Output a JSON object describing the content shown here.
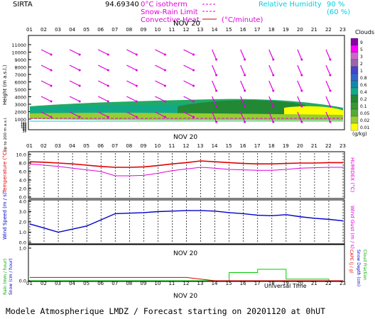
{
  "header": {
    "station": "SIRTA",
    "station_code": "94.69340",
    "legend_isotherm": "0°C isotherm",
    "legend_snow_rain": "Snow-Rain Limit",
    "legend_convective": "Convective Heat.",
    "legend_convective_unit": "(°C/minute)",
    "legend_rh_label": "Relative Humidity",
    "legend_rh_90": "90 %",
    "legend_rh_60": "(60 %)"
  },
  "date_label": "NOV 20",
  "hours": [
    "01",
    "02",
    "03",
    "04",
    "05",
    "06",
    "07",
    "08",
    "09",
    "10",
    "11",
    "12",
    "13",
    "14",
    "15",
    "16",
    "17",
    "18",
    "19",
    "20",
    "21",
    "22",
    "23"
  ],
  "footer": {
    "universal_time": "Universal Time",
    "forecast": "Modele Atmospherique LMDZ / Forecast starting on 20201120 at 0hUT"
  },
  "colors": {
    "magenta": "#e000e0",
    "cyan": "#00e0e0",
    "red": "#e00000",
    "blue": "#0000cc",
    "green": "#00cc00"
  },
  "panel_cloud": {
    "ylabel": "Height (m a.s.l.)",
    "ylabel_low": "Up to 200 m a.s.l.",
    "yticks_high": [
      "11000",
      "10000",
      "9000",
      "8000",
      "7000",
      "6000",
      "5000",
      "4000",
      "3000",
      "2000",
      "1000"
    ],
    "yticks_low": [
      "180",
      "160",
      "140",
      "120",
      "100",
      "80",
      "60",
      "40",
      "20"
    ],
    "legend_title": "Clouds",
    "legend_unit": "(g/kg)",
    "legend_levels": [
      "9",
      "5",
      "3",
      "2",
      "1",
      "0.8",
      "0.6",
      "0.4",
      "0.2",
      "0.1",
      "0.05",
      "0.02",
      "0.01"
    ],
    "legend_colors": [
      "#8800aa",
      "#ff00ff",
      "#cc66cc",
      "#9966aa",
      "#4444cc",
      "#3366cc",
      "#1188aa",
      "#11aa88",
      "#228833",
      "#339933",
      "#55aa33",
      "#99cc33",
      "#ffff00"
    ]
  },
  "panel_temp": {
    "ylabel": "Temperature (°C)",
    "ylabel_right": "HUMIDEX (°C)",
    "yticks": [
      "10.0",
      "8.0",
      "6.0",
      "4.0",
      "2.0",
      "0.0"
    ]
  },
  "panel_wind": {
    "ylabel": "Wind Speed (m / s)",
    "ylabel_right": "Wind Gust (m / s)",
    "yticks": [
      "4.0",
      "3.0",
      "2.0",
      "1.0",
      "0.0"
    ]
  },
  "panel_rain": {
    "ylabel_1": "Rain (mm / hour)",
    "ylabel_2": "Snow (cm / hour)",
    "ylabel_r1": "CAPE (J / g)",
    "ylabel_r2": "Snow Depth (cm)",
    "ylabel_r3": "Cloud Fraction",
    "yticks": [
      "1.0",
      "0.0"
    ]
  },
  "chart_data": [
    {
      "type": "line",
      "title": "Temperature",
      "x": [
        "01",
        "02",
        "03",
        "04",
        "05",
        "06",
        "07",
        "08",
        "09",
        "10",
        "11",
        "12",
        "13",
        "14",
        "15",
        "16",
        "17",
        "18",
        "19",
        "20",
        "21",
        "22",
        "23"
      ],
      "ylim": [
        0,
        10
      ],
      "series": [
        {
          "name": "Temperature",
          "values": [
            8.3,
            8.2,
            8.0,
            7.8,
            7.5,
            7.2,
            7.0,
            7.0,
            7.1,
            7.4,
            7.8,
            8.1,
            8.5,
            8.3,
            8.1,
            7.9,
            7.8,
            7.8,
            7.9,
            8.0,
            8.0,
            8.1,
            8.1
          ]
        },
        {
          "name": "HUMIDEX",
          "values": [
            7.8,
            7.5,
            7.2,
            6.8,
            6.4,
            6.0,
            5.0,
            5.0,
            5.1,
            5.6,
            6.2,
            6.6,
            7.0,
            6.8,
            6.5,
            6.4,
            6.3,
            6.3,
            6.5,
            6.8,
            6.9,
            7.0,
            7.0
          ]
        }
      ]
    },
    {
      "type": "line",
      "title": "Wind Speed",
      "x": [
        "01",
        "02",
        "03",
        "04",
        "05",
        "06",
        "07",
        "08",
        "09",
        "10",
        "11",
        "12",
        "13",
        "14",
        "15",
        "16",
        "17",
        "18",
        "19",
        "20",
        "21",
        "22",
        "23"
      ],
      "ylim": [
        0,
        4
      ],
      "series": [
        {
          "name": "Wind Speed",
          "values": [
            1.8,
            1.4,
            1.0,
            1.3,
            1.6,
            2.2,
            2.8,
            2.85,
            2.9,
            3.0,
            3.05,
            3.1,
            3.1,
            3.05,
            2.9,
            2.8,
            2.65,
            2.6,
            2.7,
            2.5,
            2.35,
            2.25,
            2.1
          ]
        }
      ]
    },
    {
      "type": "area",
      "title": "Rain / Cloud fraction",
      "x": [
        "01",
        "02",
        "03",
        "04",
        "05",
        "06",
        "07",
        "08",
        "09",
        "10",
        "11",
        "12",
        "13",
        "14",
        "15",
        "16",
        "17",
        "18",
        "19",
        "20",
        "21",
        "22",
        "23"
      ],
      "ylim": [
        0,
        1
      ],
      "series": [
        {
          "name": "Rain",
          "values": [
            0,
            0,
            0,
            0,
            0,
            0,
            0,
            0,
            0,
            0,
            0,
            0,
            0,
            0,
            0.25,
            0.25,
            0.35,
            0.35,
            0.05,
            0.05,
            0.05,
            0,
            0
          ]
        },
        {
          "name": "CAPE",
          "values": [
            0.1,
            0.1,
            0.1,
            0.1,
            0.1,
            0.1,
            0.1,
            0.1,
            0.1,
            0.1,
            0.1,
            0.1,
            0.05,
            0,
            0,
            0,
            0,
            0,
            0,
            0,
            0,
            0,
            0
          ]
        }
      ]
    }
  ]
}
